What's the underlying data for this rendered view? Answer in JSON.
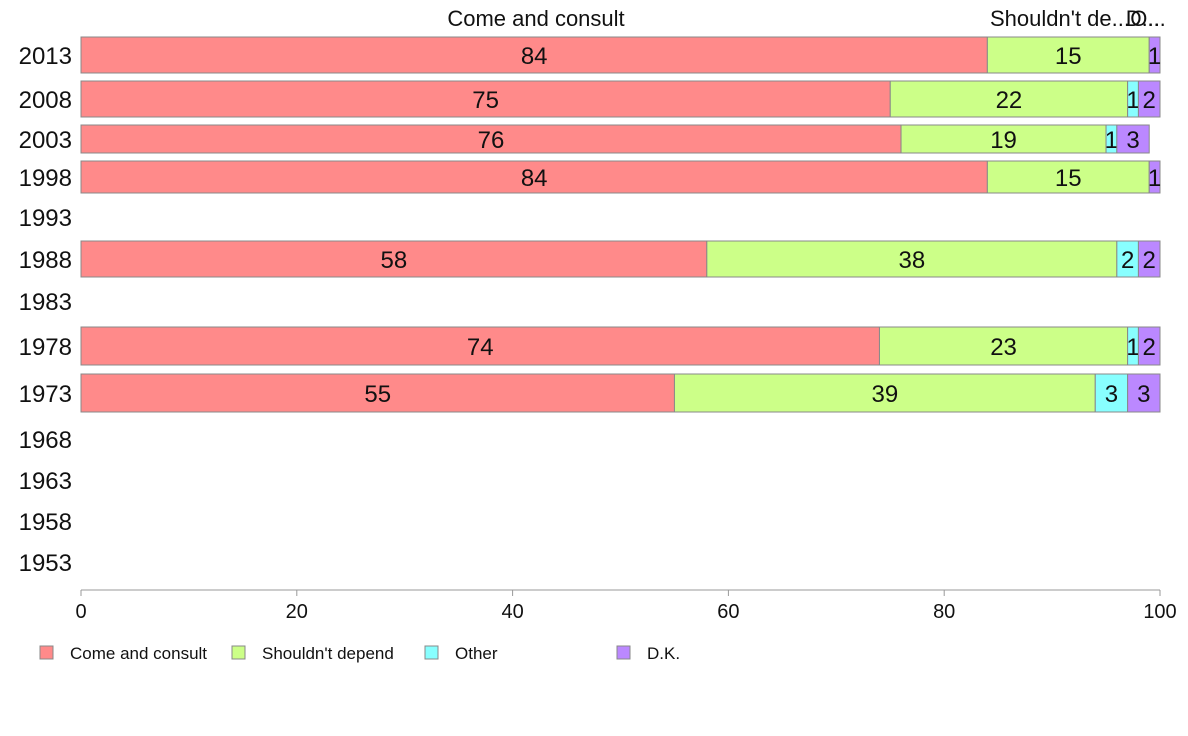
{
  "colors": {
    "Come and consult": "#ff8a8a",
    "Shouldn't depend": "#ccff88",
    "Other": "#88ffff",
    "D.K.": "#bb88ff"
  },
  "top_labels": [
    "Come and consult",
    "Shouldn't de...",
    "O...",
    "D..."
  ],
  "chart_data": {
    "type": "bar",
    "orientation": "horizontal",
    "stacked": true,
    "title": "",
    "xlabel": "",
    "ylabel": "",
    "xlim": [
      0,
      100
    ],
    "xticks": [
      "0",
      "20",
      "40",
      "60",
      "80",
      "100"
    ],
    "categories": [
      "2013",
      "2008",
      "2003",
      "1998",
      "1993",
      "1988",
      "1983",
      "1978",
      "1973",
      "1968",
      "1963",
      "1958",
      "1953"
    ],
    "series": [
      {
        "name": "Come and consult",
        "values": [
          84,
          75,
          76,
          84,
          null,
          58,
          null,
          74,
          55,
          null,
          null,
          null,
          null
        ]
      },
      {
        "name": "Shouldn't depend",
        "values": [
          15,
          22,
          19,
          15,
          null,
          38,
          null,
          23,
          39,
          null,
          null,
          null,
          null
        ]
      },
      {
        "name": "Other",
        "values": [
          0,
          1,
          1,
          0,
          null,
          2,
          null,
          1,
          3,
          null,
          null,
          null,
          null
        ]
      },
      {
        "name": "D.K.",
        "values": [
          1,
          2,
          3,
          1,
          null,
          2,
          null,
          2,
          3,
          null,
          null,
          null,
          null
        ]
      }
    ],
    "legend": {
      "position": "bottom-left",
      "entries": [
        "Come and consult",
        "Shouldn't depend",
        "Other",
        "D.K."
      ]
    },
    "grid": false
  }
}
